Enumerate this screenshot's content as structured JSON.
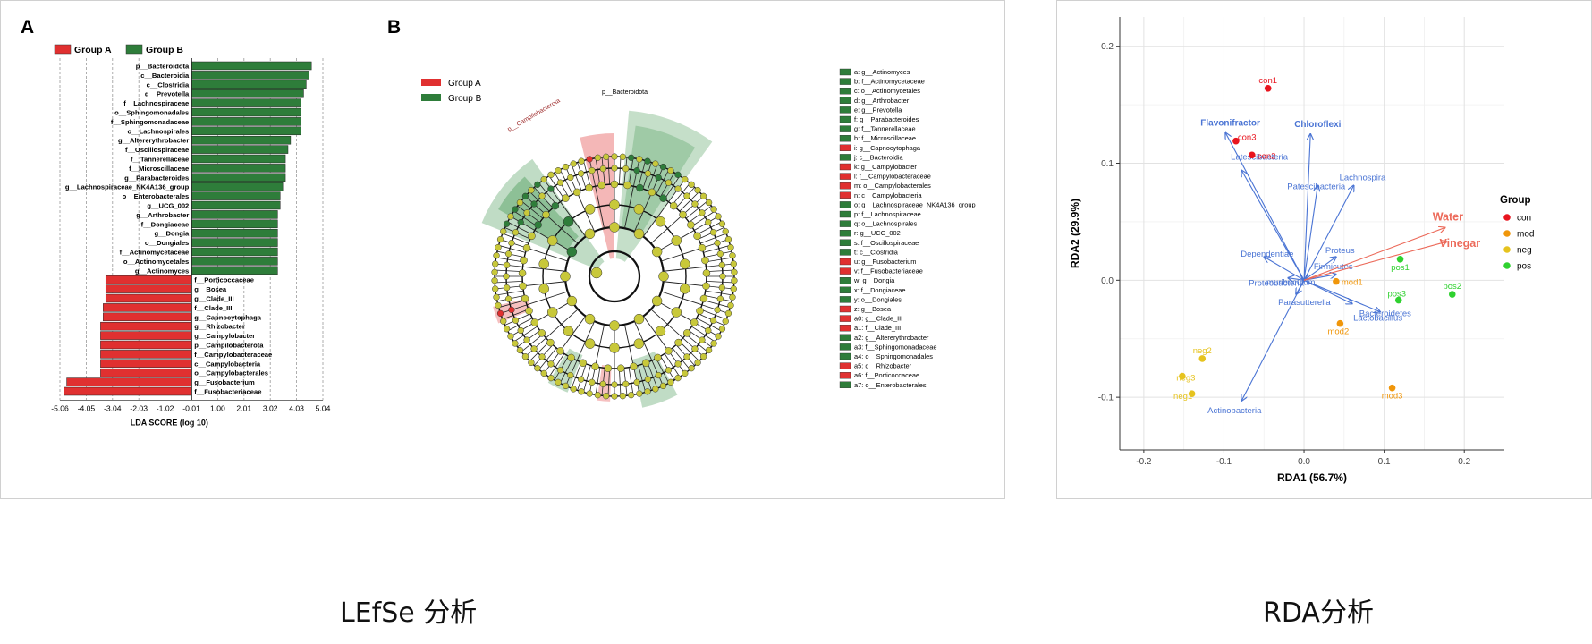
{
  "captions": {
    "left": "LEfSe 分析",
    "right": "RDA分析"
  },
  "colors": {
    "groupA": "#e03030",
    "groupB": "#2e7d3a",
    "con": "#e8141e",
    "mod": "#f0960a",
    "neg": "#e6c31e",
    "pos": "#2fd12f",
    "arrowTaxa": "#4a74d4",
    "arrowEnv": "#ec6a5a"
  },
  "chart_data": [
    {
      "type": "bar",
      "panel_label": "A",
      "legend": [
        "Group A",
        "Group B"
      ],
      "xlabel": "LDA SCORE (log 10)",
      "x_ticks": [
        "-5.06",
        "-4.05",
        "-3.04",
        "-2.03",
        "-1.02",
        "-0.01",
        "1.00",
        "2.01",
        "3.02",
        "4.03",
        "5.04"
      ],
      "x_tick_values": [
        -5.06,
        -4.05,
        -3.04,
        -2.03,
        -1.02,
        -0.01,
        1.0,
        2.01,
        3.02,
        4.03,
        5.04
      ],
      "xlim": [
        -5.06,
        5.04
      ],
      "categories": [
        "p__Bacteroidota",
        "c__Bacteroidia",
        "c__Clostridia",
        "g__Prevotella",
        "f__Lachnospiraceae",
        "o__Sphingomonadales",
        "f__Sphingomonadaceae",
        "o__Lachnospirales",
        "g__Altererythrobacter",
        "f__Oscillospiraceae",
        "f__Tannerellaceae",
        "f__Microscillaceae",
        "g__Parabacteroides",
        "g__Lachnospiraceae_NK4A136_group",
        "o__Enterobacterales",
        "g__UCG_002",
        "g__Arthrobacter",
        "f__Dongiaceae",
        "g__Dongia",
        "o__Dongiales",
        "f__Actinomycetaceae",
        "o__Actinomycetales",
        "g__Actinomyces",
        "f__Porticoccaceae",
        "g__Bosea",
        "g__Clade_III",
        "f__Clade_III",
        "g__Capnocytophaga",
        "g__Rhizobacter",
        "g__Campylobacter",
        "p__Campilobacterota",
        "f__Campylobacteraceae",
        "c__Campylobacteria",
        "o__Campylobacterales",
        "g__Fusobacterium",
        "f__Fusobacteriaceae"
      ],
      "groups": [
        "B",
        "B",
        "B",
        "B",
        "B",
        "B",
        "B",
        "B",
        "B",
        "B",
        "B",
        "B",
        "B",
        "B",
        "B",
        "B",
        "B",
        "B",
        "B",
        "B",
        "B",
        "B",
        "B",
        "A",
        "A",
        "A",
        "A",
        "A",
        "A",
        "A",
        "A",
        "A",
        "A",
        "A",
        "A",
        "A"
      ],
      "values": [
        4.6,
        4.5,
        4.4,
        4.3,
        4.2,
        4.2,
        4.2,
        4.2,
        3.8,
        3.7,
        3.6,
        3.6,
        3.6,
        3.5,
        3.4,
        3.4,
        3.3,
        3.3,
        3.3,
        3.3,
        3.3,
        3.3,
        3.3,
        -3.3,
        -3.3,
        -3.3,
        -3.4,
        -3.4,
        -3.5,
        -3.5,
        -3.5,
        -3.5,
        -3.5,
        -3.5,
        -4.8,
        -4.9
      ]
    },
    {
      "type": "cladogram",
      "panel_label": "B",
      "legend": [
        "Group  A",
        "Group  B"
      ],
      "clade_labels": [
        "p__Bacteroidota",
        "p__Campilobacterota"
      ],
      "key_entries": [
        {
          "key": "a: g__Actinomyces",
          "group": "B"
        },
        {
          "key": "b: f__Actinomycetaceae",
          "group": "B"
        },
        {
          "key": "c: o__Actinomycetales",
          "group": "B"
        },
        {
          "key": "d: g__Arthrobacter",
          "group": "B"
        },
        {
          "key": "e: g__Prevotella",
          "group": "B"
        },
        {
          "key": "f: g__Parabacteroides",
          "group": "B"
        },
        {
          "key": "g: f__Tannerellaceae",
          "group": "B"
        },
        {
          "key": "h: f__Microscillaceae",
          "group": "B"
        },
        {
          "key": "i: g__Capnocytophaga",
          "group": "A"
        },
        {
          "key": "j: c__Bacteroidia",
          "group": "B"
        },
        {
          "key": "k: g__Campylobacter",
          "group": "A"
        },
        {
          "key": "l: f__Campylobacteraceae",
          "group": "A"
        },
        {
          "key": "m: o__Campylobacterales",
          "group": "A"
        },
        {
          "key": "n: c__Campylobacteria",
          "group": "A"
        },
        {
          "key": "o: g__Lachnospiraceae_NK4A136_group",
          "group": "B"
        },
        {
          "key": "p: f__Lachnospiraceae",
          "group": "B"
        },
        {
          "key": "q: o__Lachnospirales",
          "group": "B"
        },
        {
          "key": "r: g__UCG_002",
          "group": "B"
        },
        {
          "key": "s: f__Oscillospiraceae",
          "group": "B"
        },
        {
          "key": "t: c__Clostridia",
          "group": "B"
        },
        {
          "key": "u: g__Fusobacterium",
          "group": "A"
        },
        {
          "key": "v: f__Fusobacteriaceae",
          "group": "A"
        },
        {
          "key": "w: g__Dongia",
          "group": "B"
        },
        {
          "key": "x: f__Dongiaceae",
          "group": "B"
        },
        {
          "key": "y: o__Dongiales",
          "group": "B"
        },
        {
          "key": "z: g__Bosea",
          "group": "A"
        },
        {
          "key": "a0: g__Clade_III",
          "group": "A"
        },
        {
          "key": "a1: f__Clade_III",
          "group": "A"
        },
        {
          "key": "a2: g__Altererythrobacter",
          "group": "B"
        },
        {
          "key": "a3: f__Sphingomonadaceae",
          "group": "B"
        },
        {
          "key": "a4: o__Sphingomonadales",
          "group": "B"
        },
        {
          "key": "a5: g__Rhizobacter",
          "group": "A"
        },
        {
          "key": "a6: f__Porticoccaceae",
          "group": "A"
        },
        {
          "key": "a7: o__Enterobacterales",
          "group": "B"
        }
      ]
    },
    {
      "type": "scatter",
      "xlabel": "RDA1  (56.7%)",
      "ylabel": "RDA2  (29.9%)",
      "xlim": [
        -0.23,
        0.25
      ],
      "ylim": [
        -0.145,
        0.225
      ],
      "x_ticks": [
        -0.2,
        -0.1,
        0.0,
        0.1,
        0.2
      ],
      "x_tick_labels": [
        "-0.2",
        "-0.1",
        "0.0",
        "0.1",
        "0.2"
      ],
      "y_ticks": [
        -0.1,
        0.0,
        0.1,
        0.2
      ],
      "y_tick_labels": [
        "-0.1",
        "0.0",
        "0.1",
        "0.2"
      ],
      "grid": true,
      "legend_title": "Group",
      "legend_position": "right",
      "groups": [
        "con",
        "mod",
        "neg",
        "pos"
      ],
      "points": [
        {
          "label": "con1",
          "group": "con",
          "x": -0.045,
          "y": 0.164
        },
        {
          "label": "con2",
          "group": "con",
          "x": -0.065,
          "y": 0.107
        },
        {
          "label": "con3",
          "group": "con",
          "x": -0.085,
          "y": 0.119
        },
        {
          "label": "mod1",
          "group": "mod",
          "x": 0.04,
          "y": -0.001
        },
        {
          "label": "mod2",
          "group": "mod",
          "x": 0.045,
          "y": -0.037
        },
        {
          "label": "mod3",
          "group": "mod",
          "x": 0.11,
          "y": -0.092
        },
        {
          "label": "neg1",
          "group": "neg",
          "x": -0.14,
          "y": -0.097
        },
        {
          "label": "neg2",
          "group": "neg",
          "x": -0.127,
          "y": -0.067
        },
        {
          "label": "neg3",
          "group": "neg",
          "x": -0.152,
          "y": -0.082
        },
        {
          "label": "pos1",
          "group": "pos",
          "x": 0.12,
          "y": 0.018
        },
        {
          "label": "pos2",
          "group": "pos",
          "x": 0.185,
          "y": -0.012
        },
        {
          "label": "pos3",
          "group": "pos",
          "x": 0.118,
          "y": -0.017
        }
      ],
      "taxa_arrows": [
        {
          "label": "Flavonifractor",
          "x": -0.098,
          "y": 0.126
        },
        {
          "label": "Chloroflexi",
          "x": 0.008,
          "y": 0.125
        },
        {
          "label": "Latescibacteria",
          "x": -0.078,
          "y": 0.094
        },
        {
          "label": "Patescibacteria",
          "x": 0.017,
          "y": 0.081
        },
        {
          "label": "Lachnospira",
          "x": 0.062,
          "y": 0.081
        },
        {
          "label": "Dependentiae",
          "x": -0.05,
          "y": 0.02
        },
        {
          "label": "Proteus",
          "x": 0.04,
          "y": 0.02
        },
        {
          "label": "Proteobacteria",
          "x": -0.02,
          "y": 0.002
        },
        {
          "label": "Firmicutes",
          "x": 0.04,
          "y": 0.005
        },
        {
          "label": "muribaculum",
          "x": 0.0,
          "y": -0.001
        },
        {
          "label": "Parasutterella",
          "x": -0.01,
          "y": -0.012
        },
        {
          "label": "Bacteroidetes",
          "x": 0.06,
          "y": -0.02
        },
        {
          "label": "Lactobacillus",
          "x": 0.095,
          "y": -0.027
        },
        {
          "label": "Actinobacteria",
          "x": -0.078,
          "y": -0.103
        }
      ],
      "env_arrows": [
        {
          "label": "Water",
          "x": 0.176,
          "y": 0.045
        },
        {
          "label": "Vinegar",
          "x": 0.178,
          "y": 0.033
        }
      ]
    }
  ]
}
